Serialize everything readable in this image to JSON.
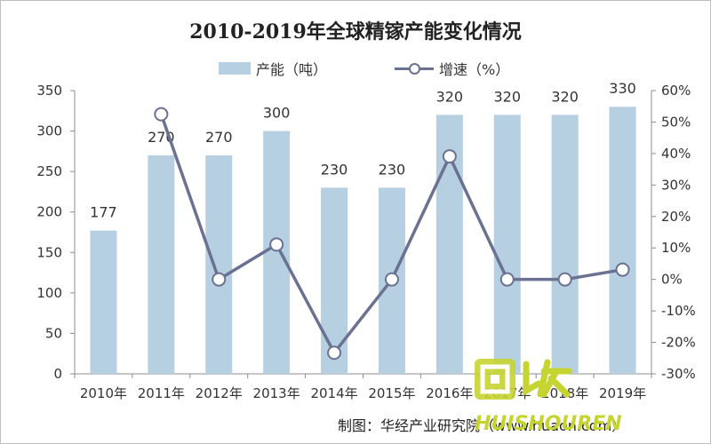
{
  "chart_data": {
    "type": "bar",
    "title": "2010-2019年全球精镓产能变化情况",
    "categories": [
      "2010年",
      "2011年",
      "2012年",
      "2013年",
      "2014年",
      "2015年",
      "2016年",
      "2017年",
      "2018年",
      "2019年"
    ],
    "series": [
      {
        "name": "产能（吨）",
        "type": "bar",
        "axis": "left",
        "values": [
          177,
          270,
          270,
          300,
          230,
          230,
          320,
          320,
          320,
          330
        ],
        "color": "#b6d0e2"
      },
      {
        "name": "增速（%）",
        "type": "line",
        "axis": "right",
        "values": [
          null,
          52.5,
          0,
          11.1,
          -23.3,
          0,
          39.1,
          0,
          0,
          3.1
        ],
        "color": "#6b7191"
      }
    ],
    "data_labels": [
      "177",
      "270",
      "270",
      "300",
      "230",
      "230",
      "320",
      "320",
      "320",
      "330"
    ],
    "y_left": {
      "min": 0,
      "max": 350,
      "step": 50,
      "ticks": [
        "0",
        "50",
        "100",
        "150",
        "200",
        "250",
        "300",
        "350"
      ]
    },
    "y_right": {
      "min": -30,
      "max": 60,
      "step": 10,
      "ticks": [
        "-30%",
        "-20%",
        "-10%",
        "0%",
        "10%",
        "20%",
        "30%",
        "40%",
        "50%",
        "60%"
      ]
    },
    "grid": false,
    "legend_position": "top"
  },
  "source_text": "制图：华经产业研究院（www.huaon.com）",
  "watermark": {
    "brand_text": "HUISHOUREN",
    "logo_glyph": "回收"
  }
}
